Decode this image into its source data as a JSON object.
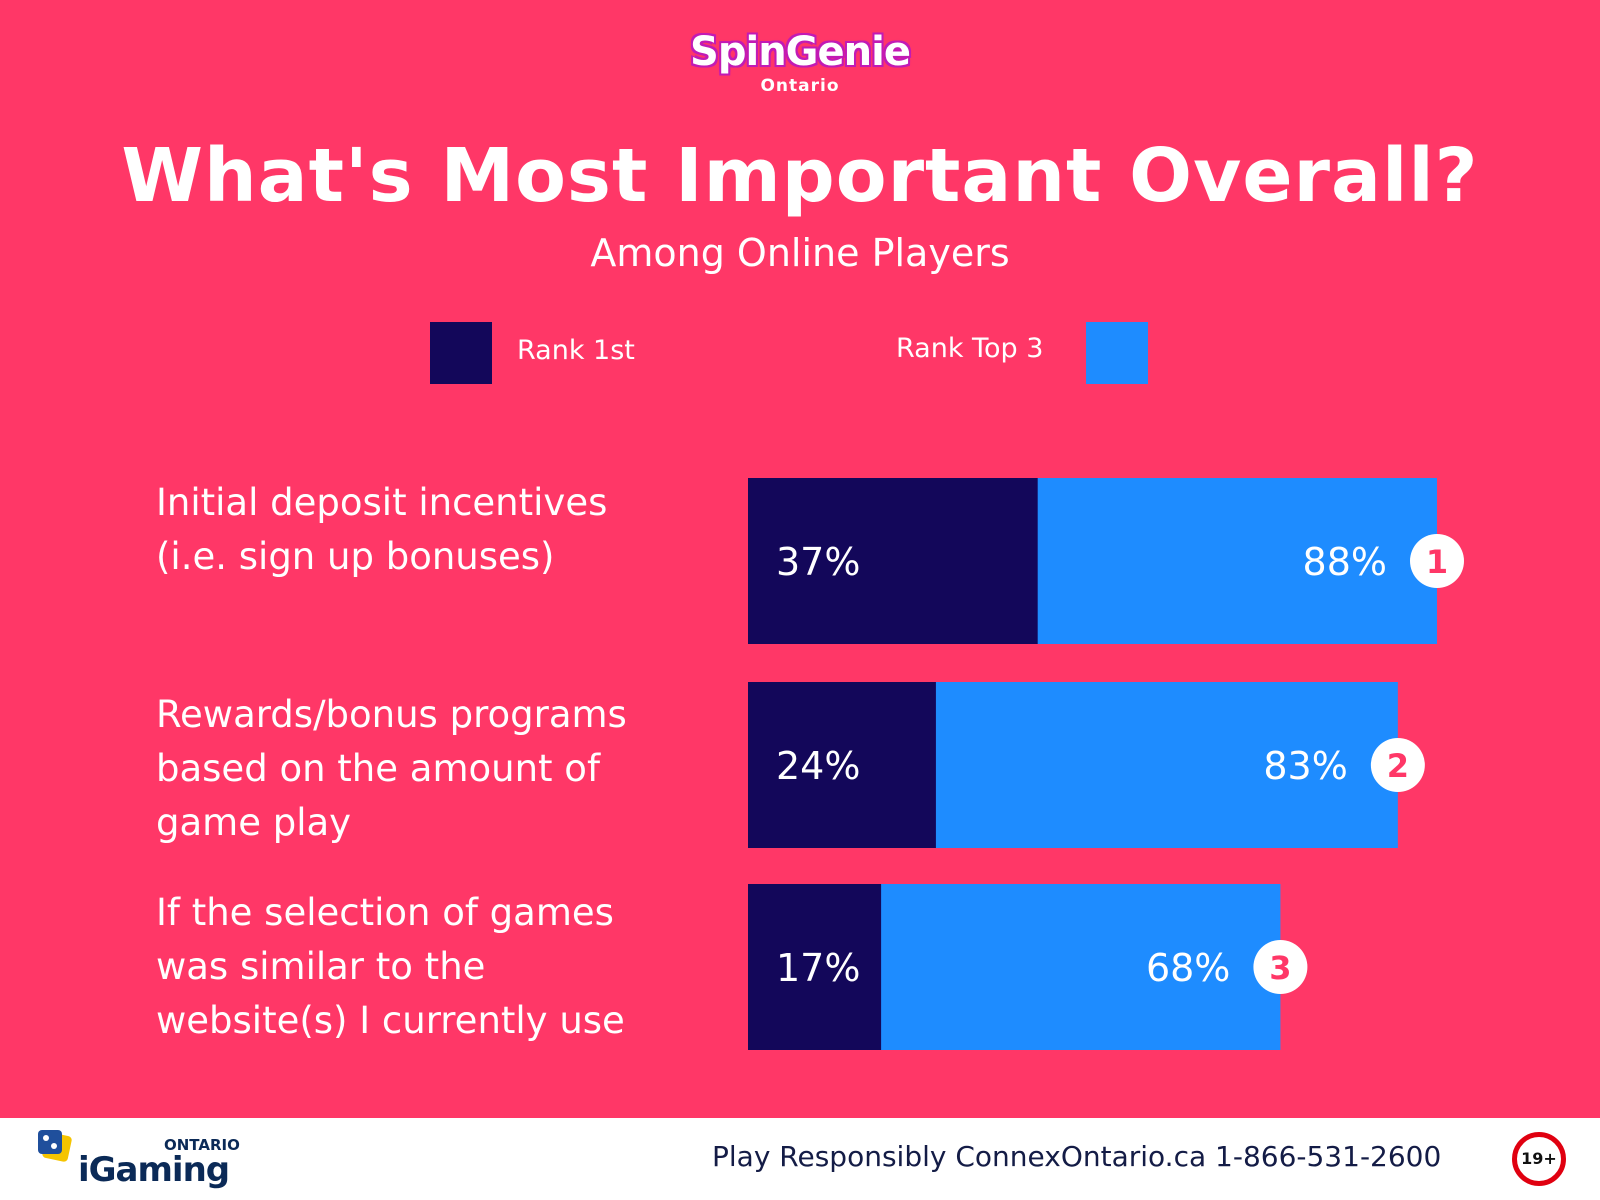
{
  "logo": {
    "brand": "SpinGenie",
    "region": "Ontario"
  },
  "chart_data": {
    "type": "bar",
    "orientation": "horizontal",
    "title": "What's Most Important Overall?",
    "subtitle": "Among Online Players",
    "categories": [
      "Initial deposit incentives\n(i.e. sign up bonuses)",
      "Rewards/bonus programs\nbased on the amount of\ngame play",
      "If the selection of games\nwas similar to the\nwebsite(s) I currently use"
    ],
    "series": [
      {
        "name": "Rank 1st",
        "color": "#13075a",
        "values": [
          37,
          24,
          17
        ],
        "labels": [
          "37%",
          "24%",
          "17%"
        ]
      },
      {
        "name": "Rank Top 3",
        "color": "#1e8cff",
        "values": [
          88,
          83,
          68
        ],
        "labels": [
          "88%",
          "83%",
          "68%"
        ]
      }
    ],
    "ranks": [
      "1",
      "2",
      "3"
    ],
    "value_unit": "%",
    "legend_position": "top",
    "grid": false
  },
  "footer": {
    "logo_region": "ONTARIO",
    "logo_brand": "iGaming",
    "text": "Play Responsibly ConnexOntario.ca 1-866-531-2600",
    "age_badge": "19+"
  }
}
